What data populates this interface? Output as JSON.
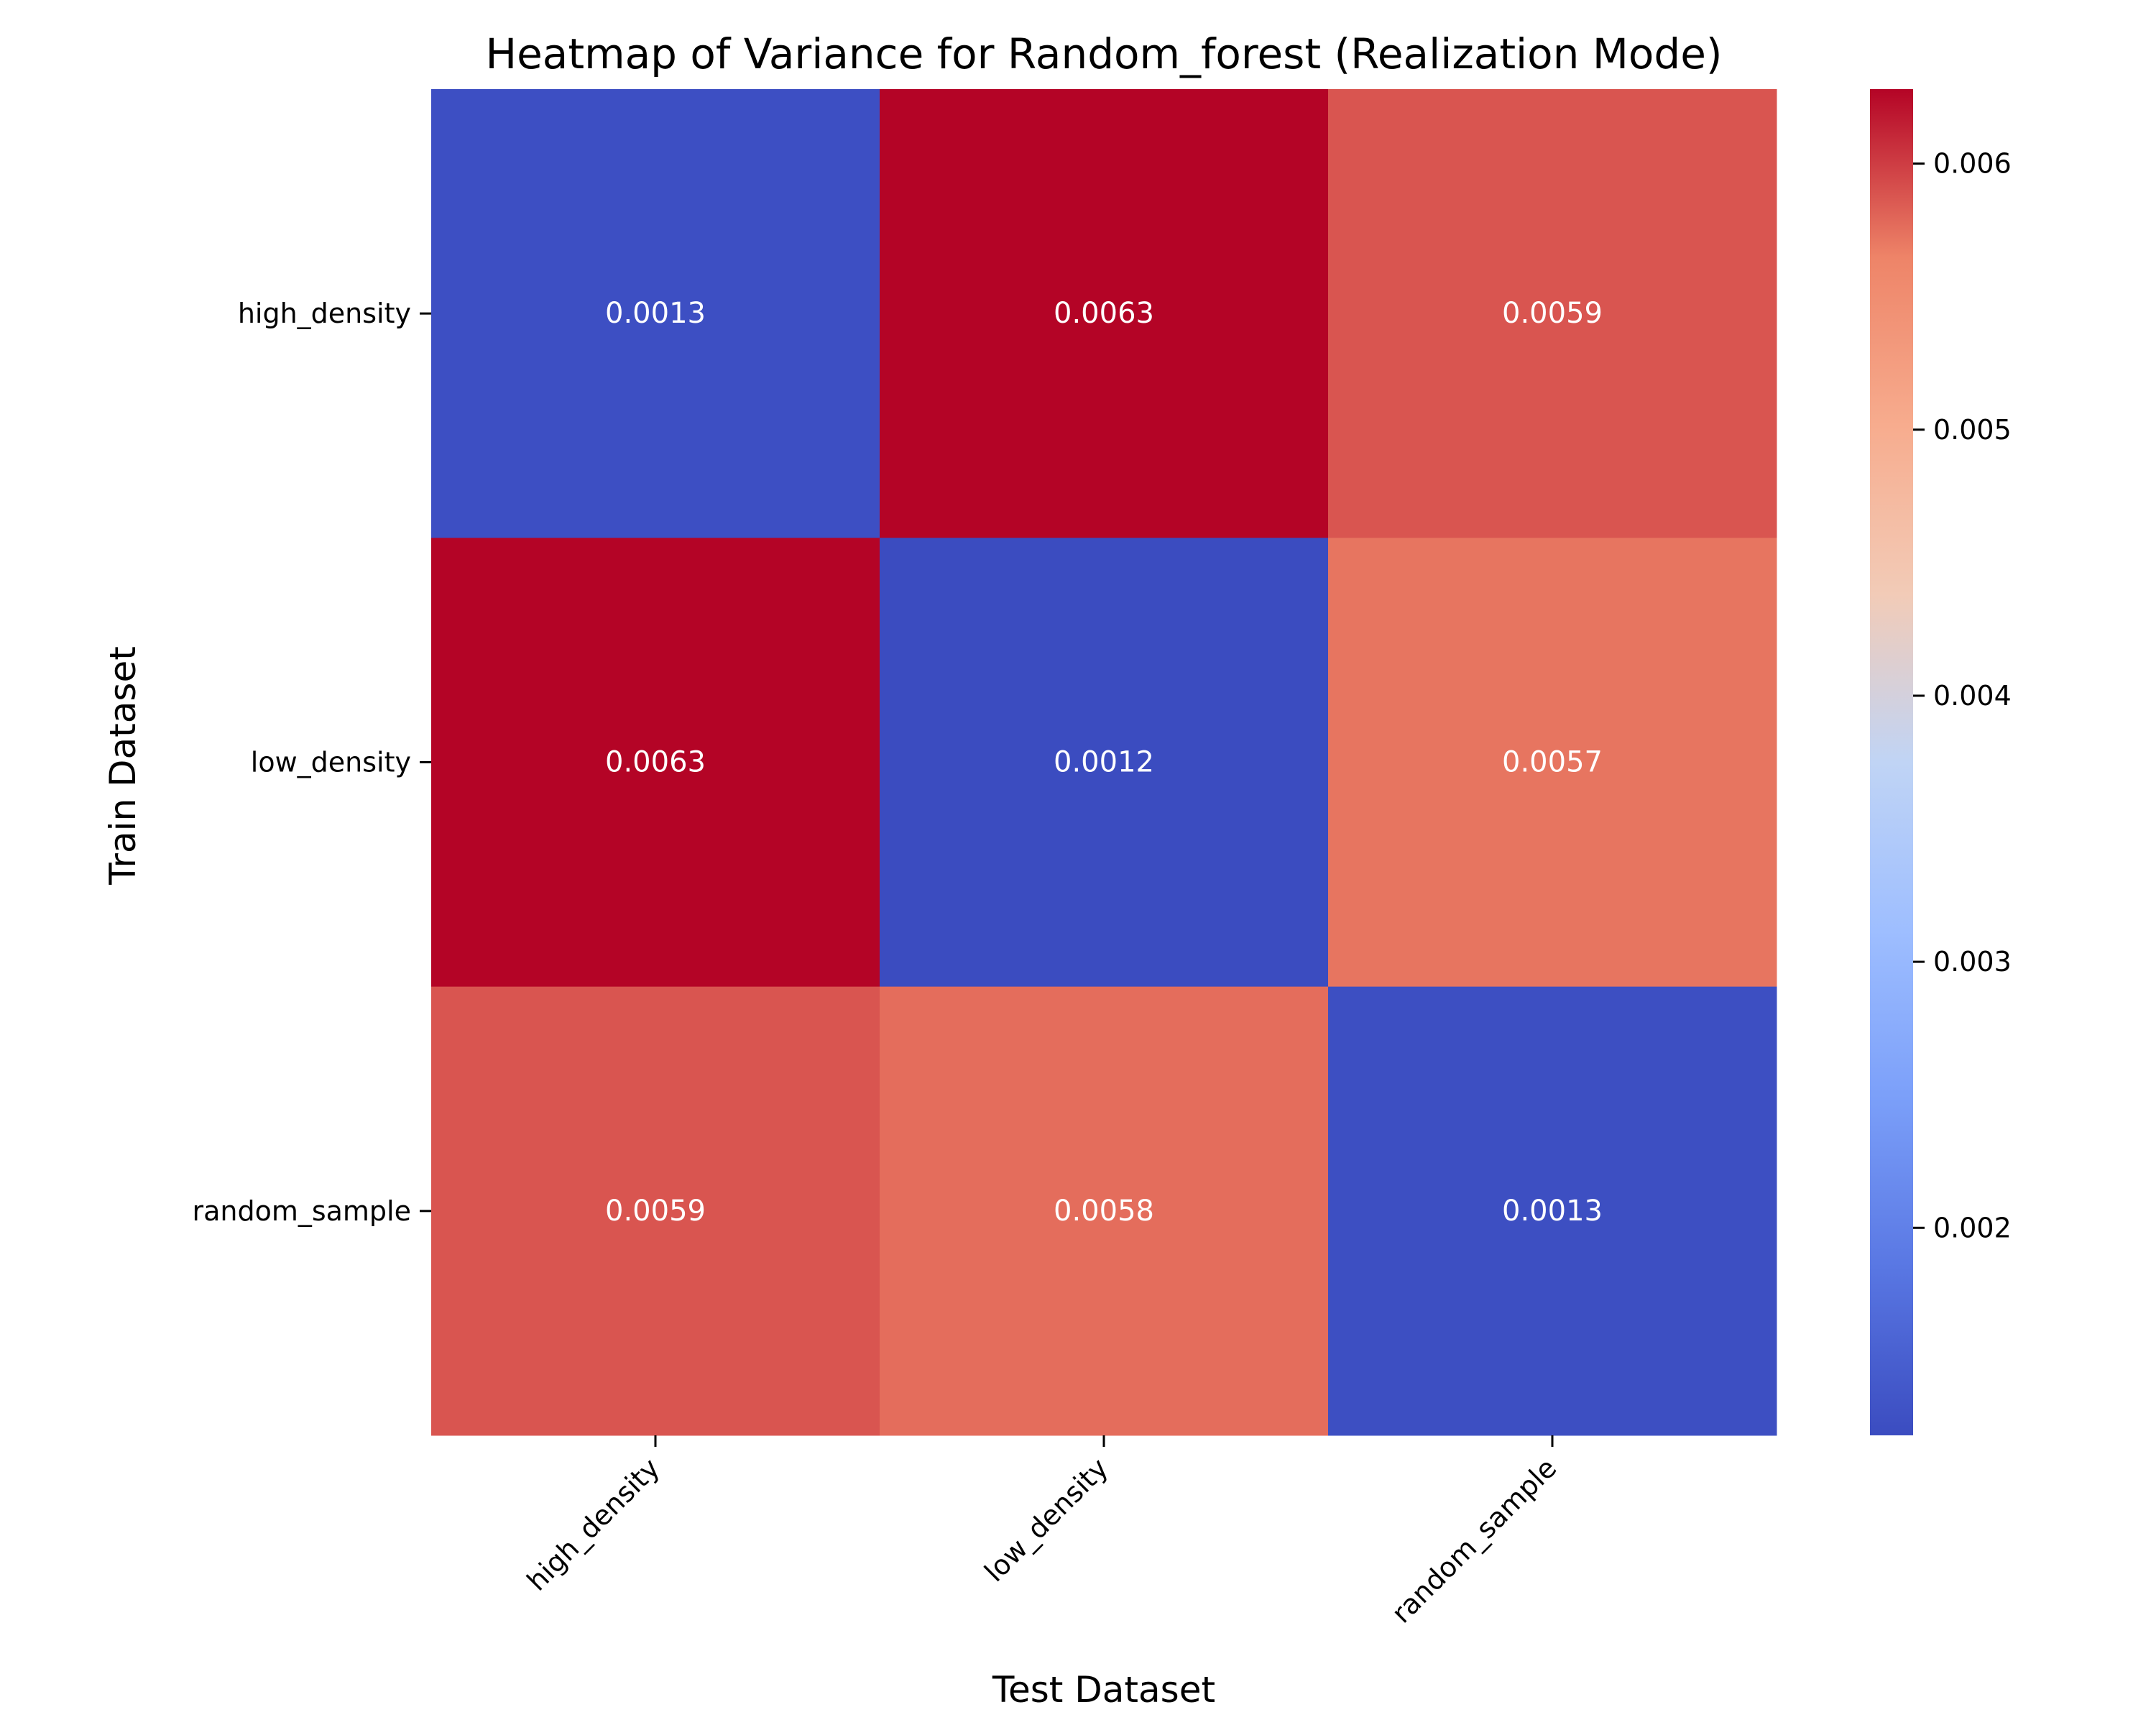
{
  "chart_data": {
    "type": "heatmap",
    "title": "Heatmap of Variance for Random_forest (Realization Mode)",
    "xlabel": "Test Dataset",
    "ylabel": "Train Dataset",
    "x_categories": [
      "high_density",
      "low_density",
      "random_sample"
    ],
    "y_categories": [
      "high_density",
      "low_density",
      "random_sample"
    ],
    "values": [
      [
        0.00127,
        0.00628,
        0.00588
      ],
      [
        0.00628,
        0.00122,
        0.00572
      ],
      [
        0.00588,
        0.00576,
        0.00126
      ]
    ],
    "annotations": [
      [
        "0.0013",
        "0.0063",
        "0.0059"
      ],
      [
        "0.0063",
        "0.0012",
        "0.0057"
      ],
      [
        "0.0059",
        "0.0058",
        "0.0013"
      ]
    ],
    "colorbar": {
      "colormap": "coolwarm",
      "min": 0.00122,
      "max": 0.00628,
      "ticks": [
        0.002,
        0.003,
        0.004,
        0.005,
        0.006
      ],
      "tick_labels": [
        "0.002",
        "0.003",
        "0.004",
        "0.005",
        "0.006"
      ]
    },
    "annotation_color": "#ffffff"
  }
}
